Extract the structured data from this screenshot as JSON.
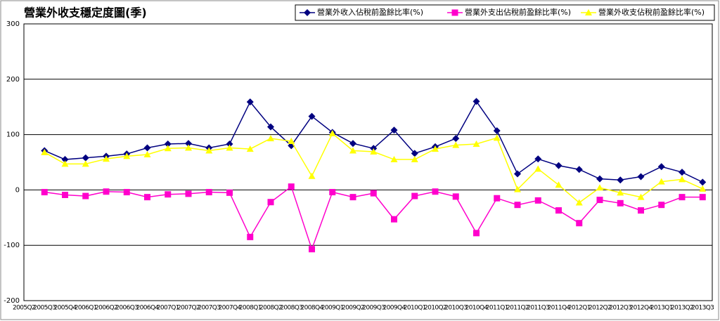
{
  "chart_data": {
    "type": "line",
    "title": "營業外收支穩定度圖(季)",
    "categories": [
      "2005Q2",
      "2005Q3",
      "2005Q4",
      "2006Q1",
      "2006Q2",
      "2006Q3",
      "2006Q4",
      "2007Q1",
      "2007Q2",
      "2007Q3",
      "2007Q4",
      "2008Q1",
      "2008Q2",
      "2008Q3",
      "2008Q4",
      "2009Q1",
      "2009Q2",
      "2009Q3",
      "2009Q4",
      "2010Q1",
      "2010Q2",
      "2010Q3",
      "2010Q4",
      "2011Q1",
      "2011Q2",
      "2011Q3",
      "2011Q4",
      "2012Q1",
      "2012Q2",
      "2012Q3",
      "2012Q4",
      "2013Q1",
      "2013Q2",
      "2013Q3"
    ],
    "series": [
      {
        "name": "營業外收入佔稅前盈餘比率(%)",
        "color": "#000080",
        "marker": "diamond",
        "values": [
          null,
          71,
          55,
          58,
          61,
          65,
          76,
          83,
          84,
          76,
          83,
          159,
          114,
          80,
          133,
          104,
          84,
          75,
          108,
          66,
          78,
          93,
          160,
          107,
          29,
          56,
          44,
          37,
          20,
          18,
          24,
          42,
          32,
          14
        ]
      },
      {
        "name": "營業外支出佔稅前盈餘比率(%)",
        "color": "#ff00cc",
        "marker": "square",
        "values": [
          null,
          -4,
          -9,
          -11,
          -3,
          -4,
          -13,
          -8,
          -7,
          -4,
          -5,
          -85,
          -22,
          6,
          -107,
          -4,
          -13,
          -6,
          -53,
          -11,
          -3,
          -12,
          -78,
          -15,
          -27,
          -19,
          -37,
          -60,
          -18,
          -24,
          -37,
          -27,
          -13,
          -13
        ]
      },
      {
        "name": "營業外收支佔稅前盈餘比率(%)",
        "color": "#ffff00",
        "marker": "triangle",
        "values": [
          null,
          68,
          47,
          47,
          56,
          61,
          64,
          75,
          76,
          71,
          76,
          74,
          93,
          88,
          25,
          102,
          71,
          69,
          55,
          55,
          74,
          81,
          83,
          94,
          1,
          38,
          9,
          -23,
          4,
          -5,
          -13,
          15,
          19,
          2
        ]
      }
    ],
    "ylim": [
      -200,
      300
    ],
    "yticks": [
      -200,
      -100,
      0,
      100,
      200,
      300
    ],
    "grid": true,
    "legend": "top-right"
  }
}
